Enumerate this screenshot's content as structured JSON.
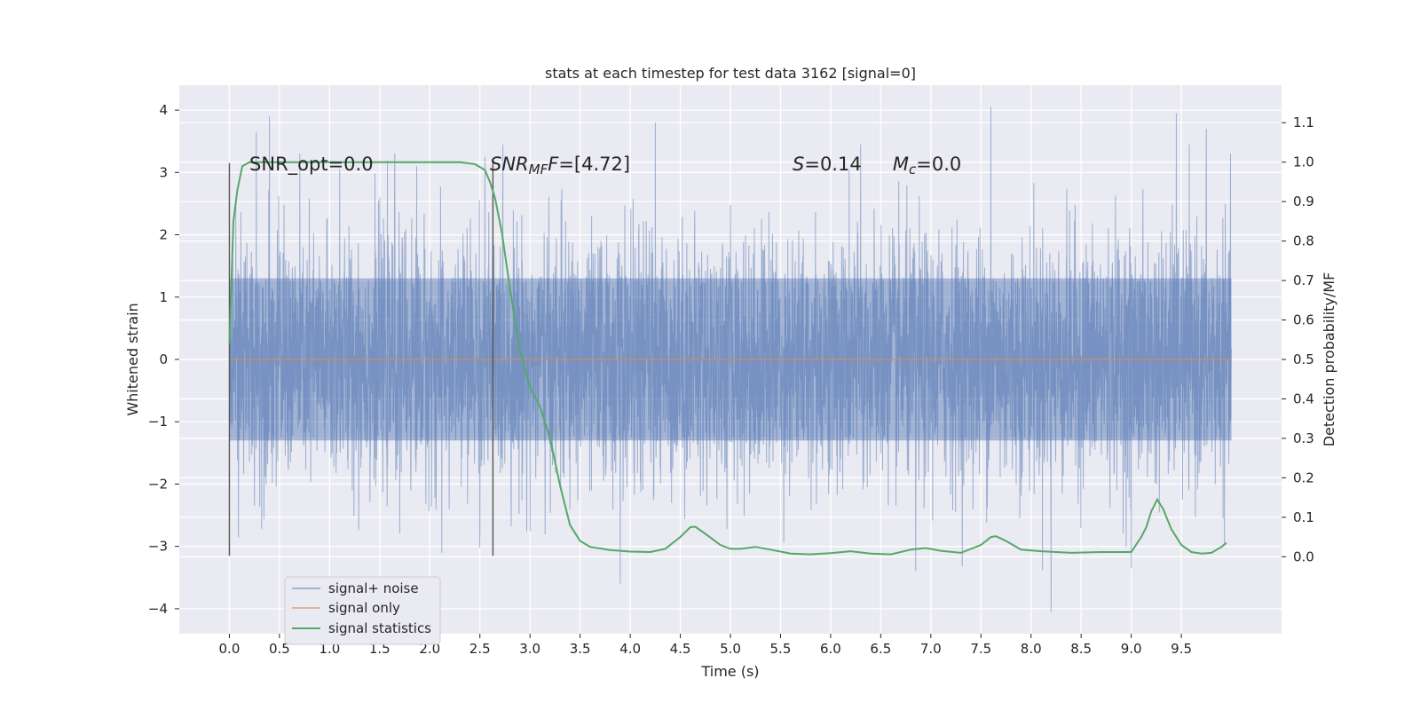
{
  "chart_data": {
    "type": "line",
    "title": "stats at each timestep for test data 3162 [signal=0]",
    "xlabel": "Time (s)",
    "ylabel": "Whitened strain",
    "y2label": "Detection probability/MF",
    "xlim": [
      -0.5,
      10.5
    ],
    "ylim": [
      -4.4,
      4.4
    ],
    "y2lim": [
      -0.195,
      1.195
    ],
    "x_ticks": [
      "0.0",
      "0.5",
      "1.0",
      "1.5",
      "2.0",
      "2.5",
      "3.0",
      "3.5",
      "4.0",
      "4.5",
      "5.0",
      "5.5",
      "6.0",
      "6.5",
      "7.0",
      "7.5",
      "8.0",
      "8.5",
      "9.0",
      "9.5"
    ],
    "y_ticks": [
      "4",
      "3",
      "2",
      "1",
      "0",
      "−1",
      "−2",
      "−3",
      "−4"
    ],
    "y2_ticks": [
      "1.1",
      "1.0",
      "0.9",
      "0.8",
      "0.7",
      "0.6",
      "0.5",
      "0.4",
      "0.3",
      "0.2",
      "0.1",
      "0.0"
    ],
    "grid": true,
    "legend_placement": "lower-left",
    "colors": {
      "noise": "#4c72b0",
      "signal": "#dd8452",
      "stats": "#55a868",
      "background": "#eaeaf2",
      "vline": "#555555"
    },
    "series": [
      {
        "name": "signal+ noise",
        "axis": "left",
        "x_range": [
          0.0,
          10.0
        ],
        "envelope": {
          "upper_typical": 1.3,
          "lower_typical": -1.3,
          "upper_peak": 4.05,
          "lower_peak": -4.05
        },
        "peaks": [
          {
            "x": 0.27,
            "y": 3.65
          },
          {
            "x": 0.4,
            "y": 3.9
          },
          {
            "x": 1.1,
            "y": 3.05
          },
          {
            "x": 1.65,
            "y": 3.3
          },
          {
            "x": 1.87,
            "y": 3.1
          },
          {
            "x": 2.5,
            "y": -2.8
          },
          {
            "x": 2.12,
            "y": -3.1
          },
          {
            "x": 2.55,
            "y": 3.25
          },
          {
            "x": 3.9,
            "y": -3.6
          },
          {
            "x": 4.25,
            "y": 3.8
          },
          {
            "x": 6.3,
            "y": 3.45
          },
          {
            "x": 6.85,
            "y": -3.4
          },
          {
            "x": 7.6,
            "y": 4.05
          },
          {
            "x": 8.2,
            "y": -4.05
          },
          {
            "x": 9.45,
            "y": 3.95
          },
          {
            "x": 9.0,
            "y": -3.35
          },
          {
            "x": 9.75,
            "y": 3.7
          }
        ]
      },
      {
        "name": "signal only",
        "axis": "left",
        "x": [
          0.0,
          10.0
        ],
        "y": [
          0.0,
          0.0
        ]
      },
      {
        "name": "signal statistics",
        "axis": "right",
        "x": [
          0.0,
          0.04,
          0.08,
          0.13,
          0.2,
          0.3,
          0.5,
          1.0,
          1.5,
          2.0,
          2.3,
          2.45,
          2.55,
          2.6,
          2.65,
          2.72,
          2.8,
          2.9,
          3.0,
          3.1,
          3.2,
          3.3,
          3.4,
          3.5,
          3.6,
          3.8,
          4.0,
          4.2,
          4.35,
          4.5,
          4.6,
          4.65,
          4.75,
          4.9,
          5.0,
          5.1,
          5.25,
          5.4,
          5.6,
          5.8,
          6.0,
          6.2,
          6.4,
          6.6,
          6.8,
          6.95,
          7.1,
          7.3,
          7.5,
          7.6,
          7.65,
          7.75,
          7.9,
          8.1,
          8.4,
          8.7,
          9.0,
          9.1,
          9.15,
          9.2,
          9.26,
          9.32,
          9.4,
          9.5,
          9.6,
          9.7,
          9.8,
          9.9,
          9.95
        ],
        "y": [
          0.54,
          0.85,
          0.93,
          0.99,
          1.0,
          1.0,
          1.0,
          1.0,
          1.0,
          1.0,
          1.0,
          0.995,
          0.98,
          0.95,
          0.91,
          0.82,
          0.68,
          0.52,
          0.43,
          0.38,
          0.3,
          0.18,
          0.08,
          0.04,
          0.025,
          0.017,
          0.013,
          0.012,
          0.02,
          0.05,
          0.075,
          0.076,
          0.058,
          0.03,
          0.02,
          0.02,
          0.025,
          0.018,
          0.008,
          0.006,
          0.009,
          0.014,
          0.008,
          0.006,
          0.018,
          0.022,
          0.015,
          0.01,
          0.03,
          0.05,
          0.052,
          0.04,
          0.018,
          0.014,
          0.01,
          0.012,
          0.012,
          0.05,
          0.075,
          0.115,
          0.145,
          0.12,
          0.07,
          0.03,
          0.012,
          0.008,
          0.01,
          0.025,
          0.035
        ]
      }
    ],
    "vlines": [
      {
        "x": 0.0,
        "ymin": -3.15,
        "ymax": 3.15
      },
      {
        "x": 2.63,
        "ymin": -3.15,
        "ymax": 3.15
      }
    ],
    "annotations": [
      {
        "text": "SNR_opt=0.0",
        "x": 0.2,
        "y": 3.15
      },
      {
        "text_main": "SNR",
        "text_sub": "MF",
        "text_rest": "=[4.72]",
        "x": 2.6,
        "y": 3.15
      },
      {
        "text_main": "S",
        "text_rest": "=0.14",
        "x": 5.62,
        "y": 3.15
      },
      {
        "text_main": "M",
        "text_sub": "c",
        "text_rest": "=0.0",
        "x": 6.62,
        "y": 3.15
      }
    ]
  }
}
